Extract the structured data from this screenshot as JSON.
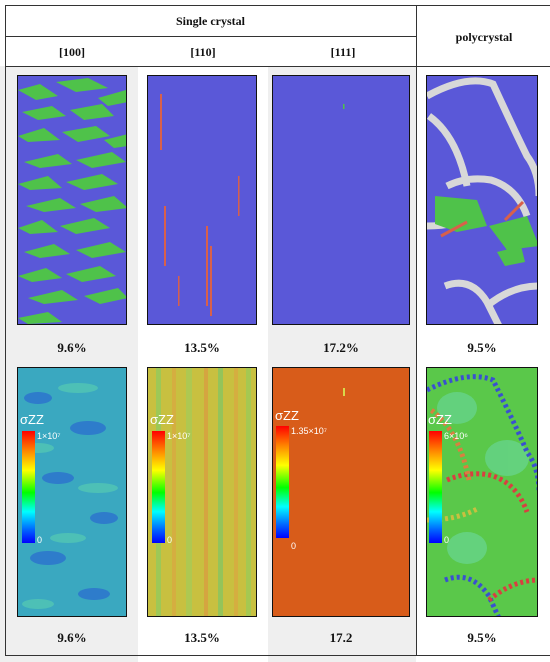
{
  "header": {
    "group_label": "Single crystal",
    "columns": [
      "[100]",
      "[110]",
      "[111]"
    ],
    "poly_label": "polycrystal"
  },
  "rows": [
    {
      "labels": [
        "9.6%",
        "13.5%",
        "17.2%",
        "9.5%"
      ]
    },
    {
      "labels": [
        "9.6%",
        "13.5%",
        "17.2",
        "9.5%"
      ]
    }
  ],
  "stress": {
    "symbol": "σZZ",
    "maxes": [
      "1×10⁷",
      "1×10⁷",
      "1.35×10⁷",
      "6×10⁶"
    ],
    "min": "0"
  },
  "colors": {
    "bcc_blue": "#5a58d8",
    "stripe_green": "#4fc24a",
    "twin_red": "#d8604a",
    "gb_grey": "#d8d8d8",
    "field_cyan": "#3aa8c0",
    "field_yellow": "#c8c040",
    "field_orange": "#d85c1a"
  }
}
